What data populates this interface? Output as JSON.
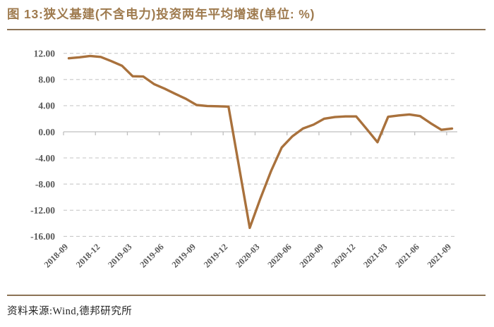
{
  "header": {
    "title": "图 13:狭义基建(不含电力)投资两年平均增速(单位: %)"
  },
  "footer": {
    "source": "资料来源:Wind,德邦研究所"
  },
  "colors": {
    "title_brown": "#9F7B4F",
    "rule_brown": "#8C7355",
    "line_brown": "#A9713C",
    "axis_gray": "#BFBFBF",
    "grid_gray": "#C9C9C9",
    "tick_text_gray": "#595959"
  },
  "chart_data": {
    "type": "line",
    "title": "狭义基建(不含电力)投资两年平均增速",
    "unit": "%",
    "xlabel": "",
    "ylabel": "",
    "legend": "none",
    "grid": "horizontal dashed",
    "ylim": [
      -16,
      12
    ],
    "x": [
      "2018-09",
      "2018-10",
      "2018-11",
      "2018-12",
      "2019-01",
      "2019-02",
      "2019-03",
      "2019-04",
      "2019-05",
      "2019-06",
      "2019-07",
      "2019-08",
      "2019-09",
      "2019-10",
      "2019-11",
      "2019-12",
      "2020-01",
      "2020-02",
      "2020-03",
      "2020-04",
      "2020-05",
      "2020-06",
      "2020-07",
      "2020-08",
      "2020-09",
      "2020-10",
      "2020-11",
      "2020-12",
      "2021-01",
      "2021-02",
      "2021-03",
      "2021-04",
      "2021-05",
      "2021-06",
      "2021-07",
      "2021-08",
      "2021-09"
    ],
    "values": [
      11.25,
      11.4,
      11.6,
      11.45,
      10.8,
      10.1,
      8.5,
      8.45,
      7.3,
      6.6,
      5.8,
      5.05,
      4.1,
      3.95,
      3.9,
      3.85,
      -5.4,
      -14.7,
      -10.2,
      -6.0,
      -2.4,
      -0.7,
      0.5,
      1.1,
      2.0,
      2.25,
      2.35,
      2.35,
      0.4,
      -1.6,
      2.3,
      2.5,
      2.65,
      2.4,
      1.3,
      0.3,
      0.5
    ],
    "x_tick_labels": [
      "2018-09",
      "2018-12",
      "2019-03",
      "2019-06",
      "2019-09",
      "2019-12",
      "2020-03",
      "2020-06",
      "2020-09",
      "2020-12",
      "2021-03",
      "2021-06",
      "2021-09"
    ],
    "x_tick_every": 3,
    "yticks": [
      12,
      8,
      4,
      0,
      -4,
      -8,
      -12,
      -16
    ],
    "ytick_labels": [
      "12.00",
      "8.00",
      "4.00",
      "0.00",
      "-4.00",
      "-8.00",
      "-12.00",
      "-16.00"
    ],
    "line_color": "#A9713C",
    "axis_color": "#BFBFBF",
    "grid_color": "#C9C9C9"
  }
}
